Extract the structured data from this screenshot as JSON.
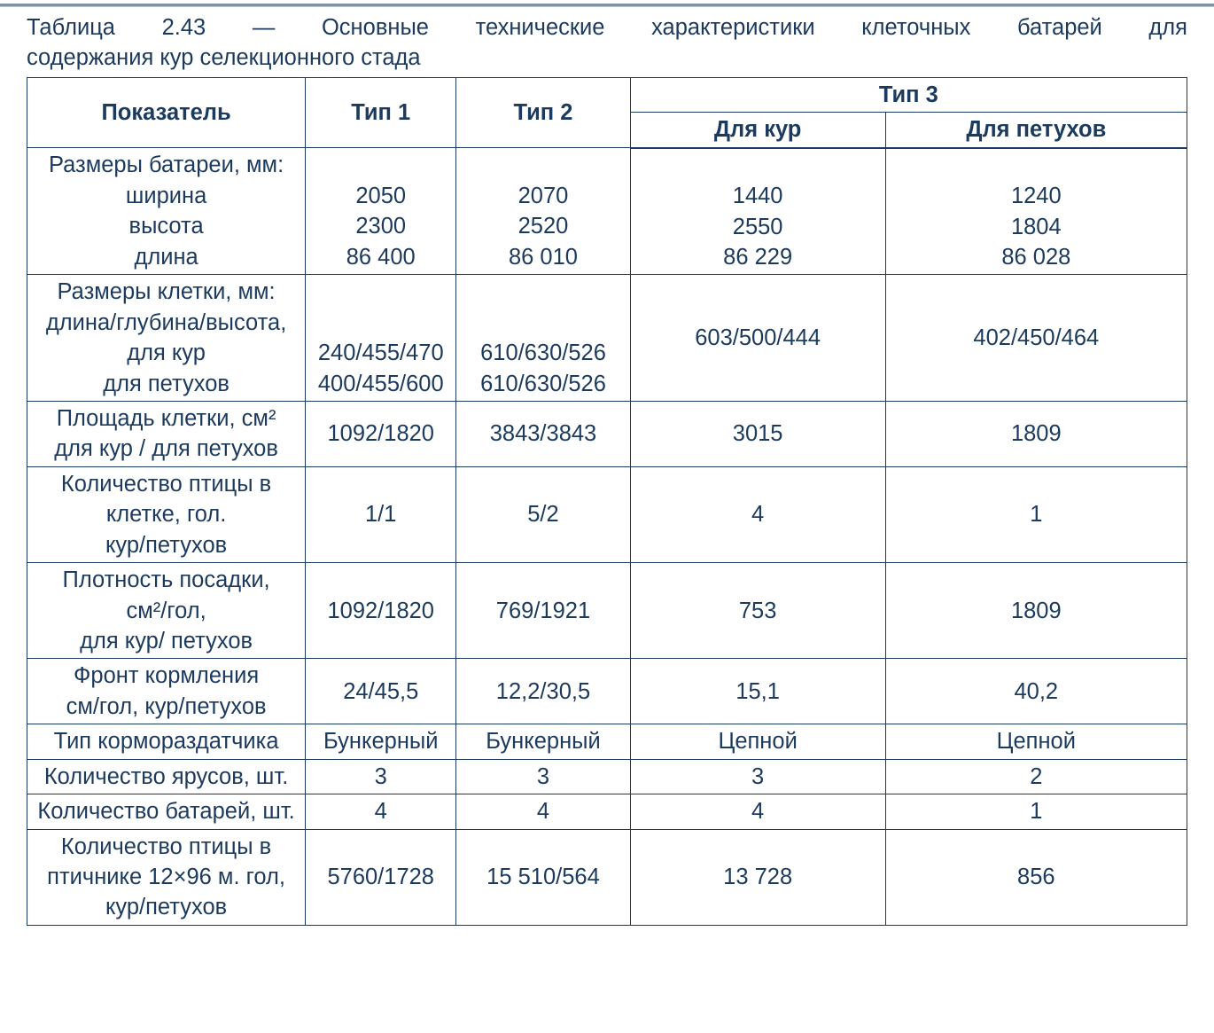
{
  "caption_line1": "Таблица 2.43 — Основные технические характеристики клеточных батарей для",
  "caption_line2": "содержания кур селекционного стада",
  "colors": {
    "text": "#1c3a5e",
    "border": "#1c3a5e",
    "topline_dark": "#7f91a3",
    "topline_light": "#b8c2cc",
    "background": "#ffffff"
  },
  "font": {
    "family": "Arial",
    "size_pt": 19
  },
  "header": {
    "indicator": "Показатель",
    "type1": "Тип 1",
    "type2": "Тип 2",
    "type3": "Тип 3",
    "type3_hens": "Для кур",
    "type3_roosters": "Для петухов"
  },
  "rows": {
    "battery_dims": {
      "title": "Размеры батареи, мм:",
      "width_label": "ширина",
      "height_label": "высота",
      "length_label": "длина",
      "width": {
        "t1": "2050",
        "t2": "2070",
        "t3h": "1440",
        "t3r": "1240"
      },
      "height": {
        "t1": "2300",
        "t2": "2520",
        "t3h": "2550",
        "t3r": "1804"
      },
      "length": {
        "t1": "86 400",
        "t2": "86 010",
        "t3h": "86 229",
        "t3r": "86 028"
      }
    },
    "cage_dims": {
      "title": "Размеры клетки, мм:",
      "sub": "длина/глубина/высота,",
      "hens_label": "для кур",
      "roosters_label": "для петухов",
      "hens": {
        "t1": "240/455/470",
        "t2": "610/630/526"
      },
      "roosters": {
        "t1": "400/455/600",
        "t2": "610/630/526"
      },
      "t3h": "603/500/444",
      "t3r": "402/450/464"
    },
    "cage_area": {
      "label1": "Площадь клетки, см²",
      "label2": "для кур / для петухов",
      "t1": "1092/1820",
      "t2": "3843/3843",
      "t3h": "3015",
      "t3r": "1809"
    },
    "birds_per_cage": {
      "label1": "Количество птицы в",
      "label2": "клетке, гол.",
      "label3": "кур/петухов",
      "t1": "1/1",
      "t2": "5/2",
      "t3h": "4",
      "t3r": "1"
    },
    "density": {
      "label1": "Плотность посадки,",
      "label2": "см²/гол,",
      "label3": "для кур/ петухов",
      "t1": "1092/1820",
      "t2": "769/1921",
      "t3h": "753",
      "t3r": "1809"
    },
    "feeding_front": {
      "label1": "Фронт кормления",
      "label2": "см/гол, кур/петухов",
      "t1": "24/45,5",
      "t2": "12,2/30,5",
      "t3h": "15,1",
      "t3r": "40,2"
    },
    "feeder_type": {
      "label": "Тип кормораздатчика",
      "t1": "Бункерный",
      "t2": "Бункерный",
      "t3h": "Цепной",
      "t3r": "Цепной"
    },
    "tiers": {
      "label": "Количество ярусов, шт.",
      "t1": "3",
      "t2": "3",
      "t3h": "3",
      "t3r": "2"
    },
    "batteries": {
      "label": "Количество батарей, шт.",
      "t1": "4",
      "t2": "4",
      "t3h": "4",
      "t3r": "1"
    },
    "birds_in_house": {
      "label1": "Количество птицы в",
      "label2": "птичнике 12×96 м. гол,",
      "label3": "кур/петухов",
      "t1": "5760/1728",
      "t2": "15 510/564",
      "t3h": "13 728",
      "t3r": "856"
    }
  }
}
